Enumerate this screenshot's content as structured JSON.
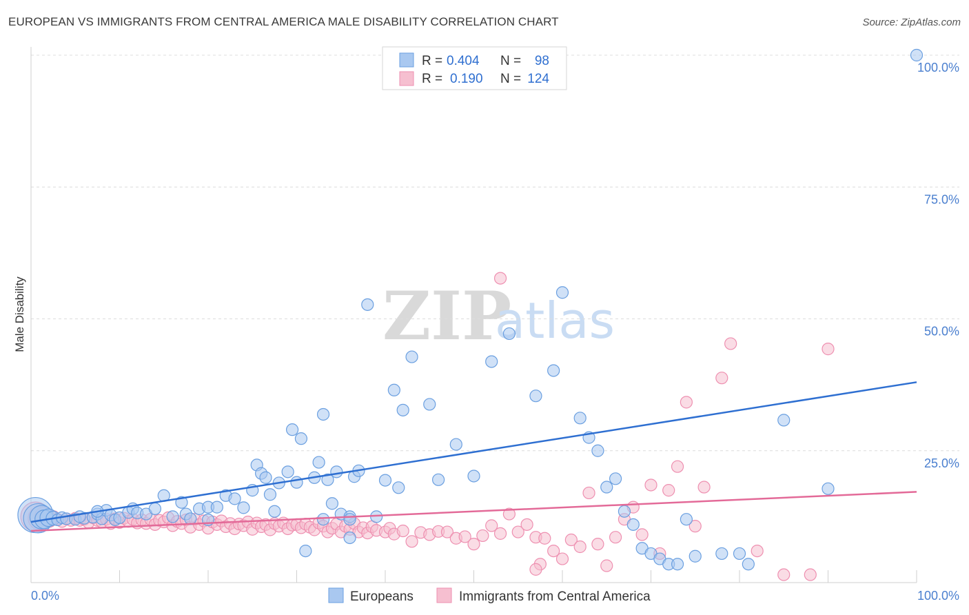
{
  "title": "EUROPEAN VS IMMIGRANTS FROM CENTRAL AMERICA MALE DISABILITY CORRELATION CHART",
  "source": "Source: ZipAtlas.com",
  "watermark": {
    "zip": "ZIP",
    "atlas": "atlas"
  },
  "colors": {
    "blue_fill": "#a9c8f0",
    "blue_stroke": "#6a9fe0",
    "blue_line": "#2e6fd1",
    "pink_fill": "#f6bfd0",
    "pink_stroke": "#ee8fb0",
    "pink_line": "#e36a98",
    "grid": "#dcdcdc",
    "axis_text": "#4a7fcf"
  },
  "legend": {
    "rows": [
      {
        "r_label": "R =",
        "r_value": "0.404",
        "n_label": "N =",
        "n_value": "98"
      },
      {
        "r_label": "R =",
        "r_value": "0.190",
        "n_label": "N =",
        "n_value": "124"
      }
    ]
  },
  "bottom_legend": [
    "Europeans",
    "Immigrants from Central America"
  ],
  "chart_data": {
    "type": "scatter",
    "title": "EUROPEAN VS IMMIGRANTS FROM CENTRAL AMERICA MALE DISABILITY CORRELATION CHART",
    "xlabel": "",
    "ylabel": "Male Disability",
    "xlim": [
      0,
      100
    ],
    "ylim": [
      0,
      105
    ],
    "x_tick_labels": [
      "0.0%",
      "100.0%"
    ],
    "y_ticks": [
      25,
      50,
      75,
      100
    ],
    "y_tick_labels": [
      "25.0%",
      "50.0%",
      "75.0%",
      "100.0%"
    ],
    "grid": "horizontal dashed",
    "legend_position": "top-center",
    "series": [
      {
        "name": "Europeans",
        "r": 0.404,
        "n": 98,
        "trend": {
          "x": [
            0,
            100
          ],
          "y": [
            11.5,
            38
          ]
        },
        "points": [
          [
            0.5,
            12.8,
            3
          ],
          [
            0.8,
            12.2,
            2.5
          ],
          [
            1.2,
            12.4,
            2
          ],
          [
            1.5,
            12.0,
            1.6
          ],
          [
            2.0,
            12.3,
            1.5
          ],
          [
            2.5,
            12.2,
            1.2
          ],
          [
            3.0,
            11.9,
            1
          ],
          [
            3.5,
            12.3,
            1
          ],
          [
            4.0,
            12.1,
            1
          ],
          [
            5.0,
            12.0,
            1
          ],
          [
            6.0,
            12.2,
            1
          ],
          [
            7.0,
            12.4,
            1
          ],
          [
            7.5,
            13.0,
            1
          ],
          [
            8.0,
            12.1,
            1
          ],
          [
            8.5,
            13.7,
            1
          ],
          [
            9.0,
            12.8,
            1
          ],
          [
            9.5,
            11.9,
            1
          ],
          [
            10,
            12.3,
            1
          ],
          [
            11,
            13.3,
            1
          ],
          [
            11.5,
            14.0,
            1
          ],
          [
            12,
            13.2,
            1
          ],
          [
            13,
            13.0,
            1
          ],
          [
            14,
            14.0,
            1
          ],
          [
            15,
            16.5,
            1
          ],
          [
            16,
            12.5,
            1
          ],
          [
            17,
            15.2,
            1
          ],
          [
            17.5,
            13.0,
            1
          ],
          [
            18,
            12.1,
            1
          ],
          [
            19,
            14.0,
            1
          ],
          [
            20,
            14.3,
            1
          ],
          [
            20,
            11.9,
            1
          ],
          [
            21,
            14.3,
            1
          ],
          [
            22,
            16.5,
            1
          ],
          [
            23,
            15.9,
            1
          ],
          [
            24,
            14.2,
            1
          ],
          [
            25,
            17.5,
            1
          ],
          [
            25.5,
            22.3,
            1
          ],
          [
            26,
            20.7,
            1
          ],
          [
            26.5,
            19.9,
            1
          ],
          [
            27,
            16.7,
            1
          ],
          [
            27.5,
            13.5,
            1
          ],
          [
            28,
            18.9,
            1
          ],
          [
            29,
            21.0,
            1
          ],
          [
            29.5,
            29.0,
            1
          ],
          [
            30,
            19.0,
            1
          ],
          [
            30.5,
            27.3,
            1
          ],
          [
            31,
            6.0,
            1
          ],
          [
            32,
            19.9,
            1
          ],
          [
            32.5,
            22.8,
            1
          ],
          [
            33,
            31.9,
            1
          ],
          [
            33,
            12.0,
            1
          ],
          [
            33.5,
            19.5,
            1
          ],
          [
            34,
            15.0,
            1
          ],
          [
            34.5,
            21.0,
            1
          ],
          [
            35,
            13.0,
            1
          ],
          [
            36,
            12.5,
            1
          ],
          [
            36,
            8.5,
            1
          ],
          [
            36.5,
            20.1,
            1
          ],
          [
            37,
            21.2,
            1
          ],
          [
            38,
            52.7,
            1
          ],
          [
            39,
            12.5,
            1
          ],
          [
            40,
            19.4,
            1
          ],
          [
            41,
            36.5,
            1
          ],
          [
            41.5,
            18.0,
            1
          ],
          [
            42,
            32.7,
            1
          ],
          [
            43,
            42.8,
            1
          ],
          [
            45,
            33.8,
            1
          ],
          [
            46,
            19.5,
            1
          ],
          [
            48,
            26.2,
            1
          ],
          [
            50,
            20.2,
            1
          ],
          [
            52,
            41.9,
            1
          ],
          [
            54,
            47.2,
            1
          ],
          [
            57,
            35.4,
            1
          ],
          [
            59,
            40.2,
            1
          ],
          [
            60,
            55.0,
            1
          ],
          [
            62,
            31.2,
            1
          ],
          [
            63,
            27.5,
            1
          ],
          [
            64,
            25.0,
            1
          ],
          [
            65,
            18.1,
            1
          ],
          [
            66,
            19.7,
            1
          ],
          [
            67,
            13.5,
            1
          ],
          [
            68,
            11.0,
            1
          ],
          [
            69,
            6.5,
            1
          ],
          [
            70,
            5.5,
            1
          ],
          [
            71,
            4.5,
            1
          ],
          [
            72,
            3.5,
            1
          ],
          [
            73,
            3.5,
            1
          ],
          [
            74,
            12.0,
            1
          ],
          [
            75,
            5.0,
            1
          ],
          [
            78,
            5.5,
            1
          ],
          [
            80,
            5.5,
            1
          ],
          [
            81,
            3.5,
            1
          ],
          [
            85,
            30.8,
            1
          ],
          [
            90,
            17.8,
            1
          ],
          [
            100,
            100,
            1
          ],
          [
            7.5,
            13.5,
            1
          ],
          [
            5.5,
            12.5,
            1
          ],
          [
            36,
            12.0,
            1
          ]
        ]
      },
      {
        "name": "Immigrants from Central America",
        "r": 0.19,
        "n": 124,
        "trend": {
          "x": [
            0,
            100
          ],
          "y": [
            9.8,
            17.2
          ]
        },
        "points": [
          [
            0.5,
            12.5,
            2.5
          ],
          [
            1.0,
            12.2,
            2
          ],
          [
            1.5,
            12.6,
            1.6
          ],
          [
            2.0,
            12.0,
            1.4
          ],
          [
            2.5,
            12.3,
            1.2
          ],
          [
            3,
            12.0,
            1
          ],
          [
            3.5,
            11.6,
            1
          ],
          [
            4,
            12.1,
            1
          ],
          [
            4.5,
            11.8,
            1
          ],
          [
            5,
            12.2,
            1
          ],
          [
            5.5,
            11.8,
            1
          ],
          [
            6,
            12.0,
            1
          ],
          [
            6.5,
            11.4,
            1
          ],
          [
            7,
            12.3,
            1
          ],
          [
            7.5,
            11.8,
            1
          ],
          [
            8,
            11.5,
            1
          ],
          [
            8.5,
            12.0,
            1
          ],
          [
            9,
            11.2,
            1
          ],
          [
            9.5,
            12.1,
            1
          ],
          [
            10,
            11.4,
            1
          ],
          [
            10.5,
            12.2,
            1
          ],
          [
            11,
            11.6,
            1
          ],
          [
            11.5,
            12.0,
            1
          ],
          [
            12,
            11.3,
            1
          ],
          [
            12.5,
            11.9,
            1
          ],
          [
            13,
            11.2,
            1
          ],
          [
            13.5,
            12.0,
            1
          ],
          [
            14,
            11.0,
            1
          ],
          [
            14.5,
            11.8,
            1
          ],
          [
            15,
            11.5,
            1
          ],
          [
            15.5,
            12.3,
            1
          ],
          [
            16,
            10.8,
            1
          ],
          [
            16.5,
            11.6,
            1
          ],
          [
            17,
            11.2,
            1
          ],
          [
            17.5,
            11.9,
            1
          ],
          [
            18,
            10.5,
            1
          ],
          [
            18.5,
            12.0,
            1
          ],
          [
            19,
            11.0,
            1
          ],
          [
            19.5,
            11.7,
            1
          ],
          [
            20,
            10.3,
            1
          ],
          [
            20.5,
            11.5,
            1
          ],
          [
            21,
            11.0,
            1
          ],
          [
            21.5,
            11.7,
            1
          ],
          [
            22,
            10.6,
            1
          ],
          [
            22.5,
            11.2,
            1
          ],
          [
            23,
            10.2,
            1
          ],
          [
            23.5,
            11.1,
            1
          ],
          [
            24,
            10.8,
            1
          ],
          [
            24.5,
            11.5,
            1
          ],
          [
            25,
            10.1,
            1
          ],
          [
            25.5,
            11.3,
            1
          ],
          [
            26,
            10.6,
            1
          ],
          [
            26.5,
            11.0,
            1
          ],
          [
            27,
            10.0,
            1
          ],
          [
            27.5,
            11.2,
            1
          ],
          [
            28,
            10.7,
            1
          ],
          [
            28.5,
            11.3,
            1
          ],
          [
            29,
            10.2,
            1
          ],
          [
            29.5,
            10.9,
            1
          ],
          [
            30,
            11.0,
            1
          ],
          [
            30.5,
            10.4,
            1
          ],
          [
            31,
            11.1,
            1
          ],
          [
            31.5,
            10.5,
            1
          ],
          [
            32,
            10.0,
            1
          ],
          [
            32.5,
            11.3,
            1
          ],
          [
            33,
            10.7,
            1
          ],
          [
            33.5,
            9.6,
            1
          ],
          [
            34,
            10.3,
            1
          ],
          [
            34.5,
            11.1,
            1
          ],
          [
            35,
            9.6,
            1
          ],
          [
            35.5,
            10.7,
            1
          ],
          [
            36,
            10.1,
            1
          ],
          [
            36.5,
            11.2,
            1
          ],
          [
            37,
            9.6,
            1
          ],
          [
            37.5,
            10.4,
            1
          ],
          [
            38,
            9.4,
            1
          ],
          [
            38.5,
            10.6,
            1
          ],
          [
            39,
            9.9,
            1
          ],
          [
            40,
            9.6,
            1
          ],
          [
            40.5,
            10.3,
            1
          ],
          [
            41,
            9.2,
            1
          ],
          [
            42,
            9.8,
            1
          ],
          [
            43,
            7.8,
            1
          ],
          [
            44,
            9.5,
            1
          ],
          [
            45,
            9.1,
            1
          ],
          [
            46,
            9.7,
            1
          ],
          [
            47,
            9.6,
            1
          ],
          [
            48,
            8.4,
            1
          ],
          [
            49,
            8.7,
            1
          ],
          [
            50,
            7.3,
            1
          ],
          [
            51,
            8.9,
            1
          ],
          [
            52,
            10.8,
            1
          ],
          [
            53,
            9.3,
            1
          ],
          [
            54,
            13.0,
            1
          ],
          [
            55,
            9.6,
            1
          ],
          [
            56,
            11.0,
            1
          ],
          [
            57,
            8.6,
            1
          ],
          [
            57.5,
            3.5,
            1
          ],
          [
            58,
            8.4,
            1
          ],
          [
            59,
            6.0,
            1
          ],
          [
            60,
            4.5,
            1
          ],
          [
            61,
            8.1,
            1
          ],
          [
            62,
            6.8,
            1
          ],
          [
            63,
            17.0,
            1
          ],
          [
            64,
            7.3,
            1
          ],
          [
            65,
            3.2,
            1
          ],
          [
            66,
            8.6,
            1
          ],
          [
            67,
            12.0,
            1
          ],
          [
            68,
            14.3,
            1
          ],
          [
            69,
            9.1,
            1
          ],
          [
            70,
            18.5,
            1
          ],
          [
            71,
            5.5,
            1
          ],
          [
            72,
            17.5,
            1
          ],
          [
            73,
            22.0,
            1
          ],
          [
            74,
            34.2,
            1
          ],
          [
            75,
            10.7,
            1
          ],
          [
            76,
            18.1,
            1
          ],
          [
            78,
            38.8,
            1
          ],
          [
            79,
            45.3,
            1
          ],
          [
            82,
            6.0,
            1
          ],
          [
            85,
            1.5,
            1
          ],
          [
            88,
            1.5,
            1
          ],
          [
            90,
            44.3,
            1
          ],
          [
            53,
            57.7,
            1
          ],
          [
            57,
            2.5,
            1
          ]
        ]
      }
    ]
  }
}
